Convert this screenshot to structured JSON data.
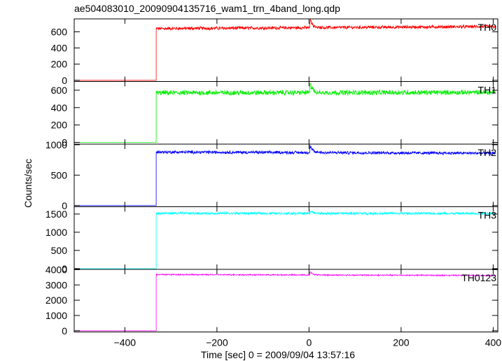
{
  "chart_data": {
    "type": "line",
    "title": "ae504083010_20090904135716_wam1_trn_4band_long.qdp",
    "xlabel": "Time [sec] 0 = 2009/09/04 13:57:16",
    "ylabel": "Counts/sec",
    "xlim": [
      -510,
      410
    ],
    "x_ticks": [
      -400,
      -200,
      0,
      200,
      400
    ],
    "x_tick_labels": [
      "−400",
      "−200",
      "0",
      "200",
      "400"
    ],
    "step_time": -332,
    "grid": false,
    "panels": [
      {
        "name": "TH0",
        "color": "#ff0000",
        "ylim": [
          -15,
          760
        ],
        "y_ticks": [
          0,
          200,
          400,
          600
        ],
        "y_tick_labels": [
          "0",
          "200",
          "400",
          "600"
        ],
        "baseline": 0,
        "level_start": 640,
        "level_end": 665,
        "noise": 18,
        "spike": 120
      },
      {
        "name": "TH1",
        "color": "#00ee00",
        "ylim": [
          -20,
          700
        ],
        "y_ticks": [
          0,
          200,
          400,
          600
        ],
        "y_tick_labels": [
          "0",
          "200",
          "400",
          "600"
        ],
        "baseline": 0,
        "level_start": 570,
        "level_end": 575,
        "noise": 25,
        "spike": 120
      },
      {
        "name": "TH2",
        "color": "#0000ff",
        "ylim": [
          -20,
          1010
        ],
        "y_ticks": [
          0,
          500,
          1000
        ],
        "y_tick_labels": [
          "0",
          "500",
          "1000"
        ],
        "baseline": 0,
        "level_start": 880,
        "level_end": 860,
        "noise": 22,
        "spike": 120
      },
      {
        "name": "TH3",
        "color": "#00ffff",
        "ylim": [
          -20,
          1700
        ],
        "y_ticks": [
          0,
          500,
          1000,
          1500
        ],
        "y_tick_labels": [
          "0",
          "500",
          "1000",
          "1500"
        ],
        "baseline": 0,
        "level_start": 1520,
        "level_end": 1515,
        "noise": 30,
        "spike": 80
      },
      {
        "name": "TH0123",
        "color": "#ff00ff",
        "ylim": [
          -80,
          4020
        ],
        "y_ticks": [
          0,
          1000,
          2000,
          3000,
          4000
        ],
        "y_tick_labels": [
          "0",
          "1000",
          "2000",
          "3000",
          "4000"
        ],
        "baseline": 0,
        "level_start": 3680,
        "level_end": 3620,
        "noise": 35,
        "spike": 250
      }
    ]
  }
}
